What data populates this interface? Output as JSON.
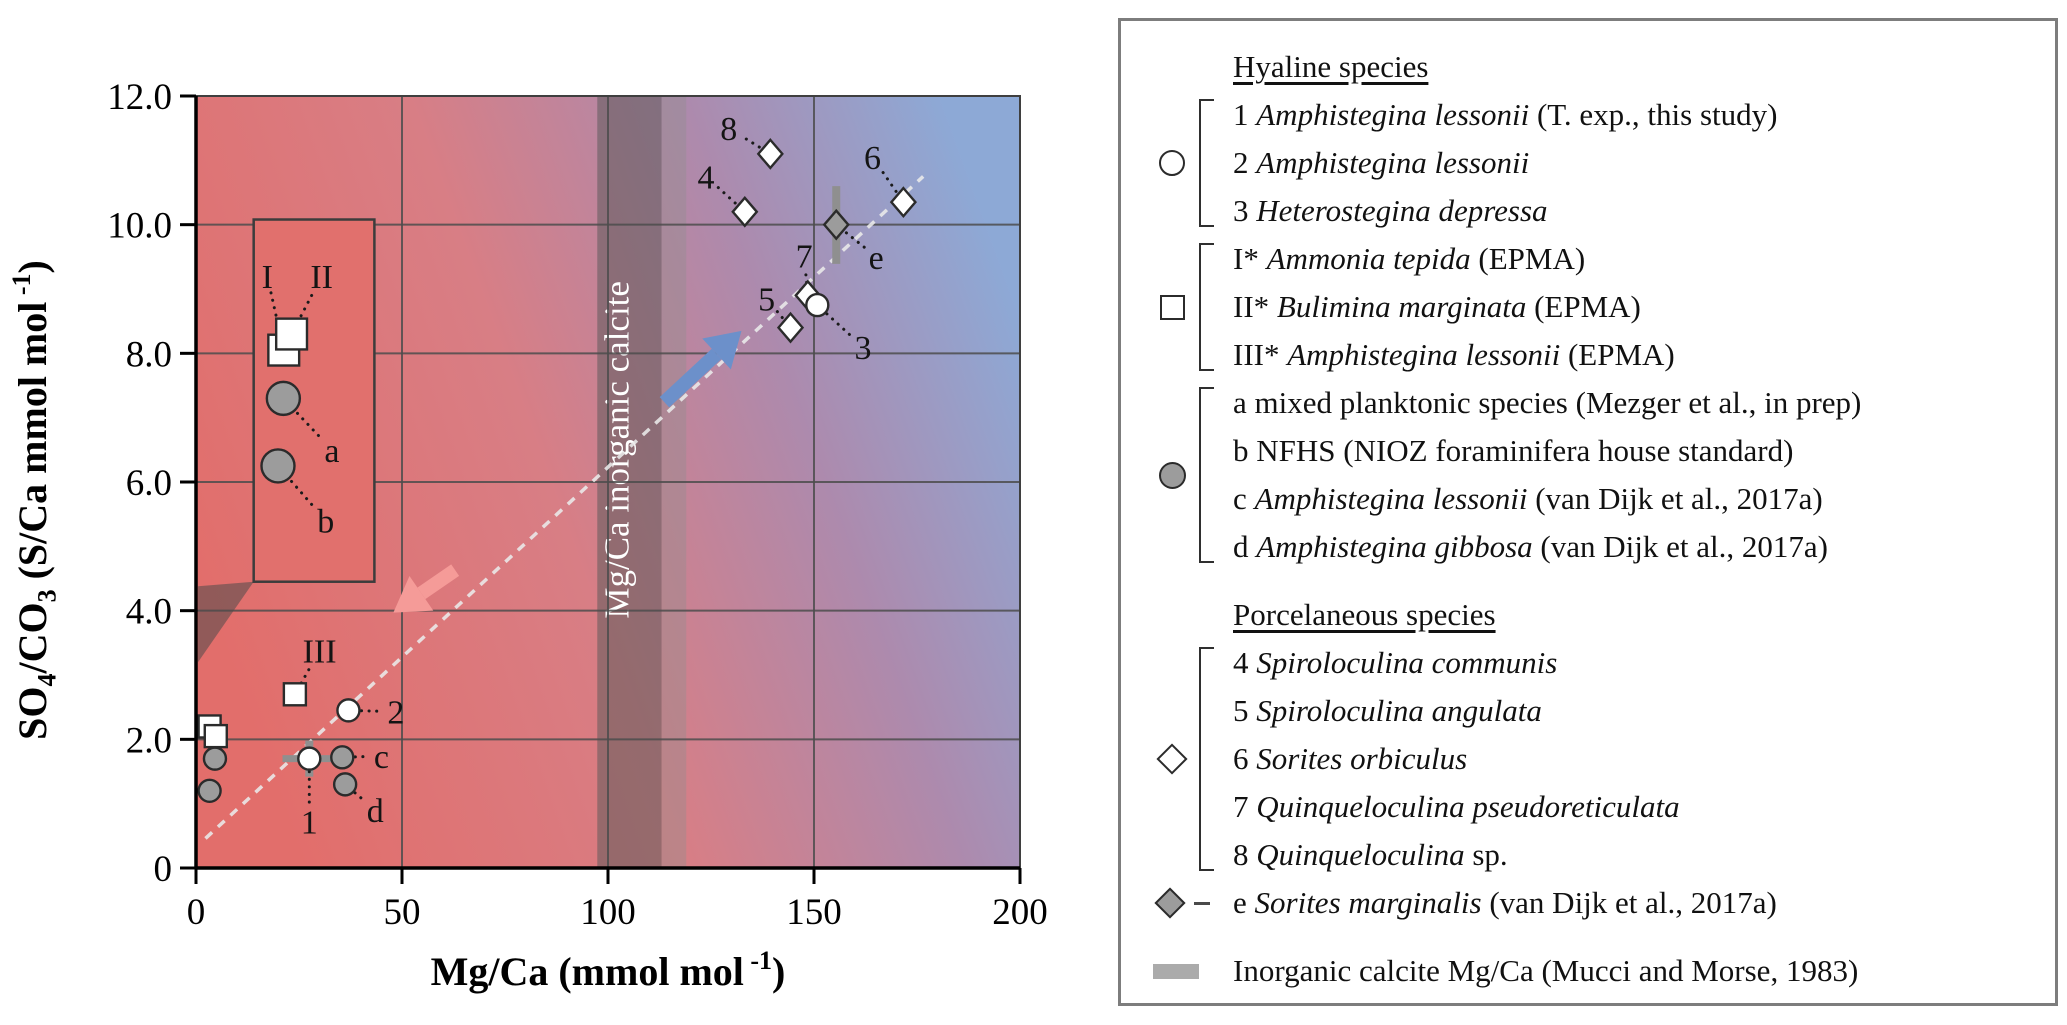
{
  "chart_data": {
    "type": "scatter",
    "title": "",
    "xlabel": "Mg/Ca (mmol mol-1)",
    "ylabel": "SO4/CO3 (S/Ca mmol mol-1)",
    "xlabel_parts": [
      {
        "t": "Mg/Ca (mmol mol",
        "k": "n"
      },
      {
        "t": " -1",
        "k": "sup"
      },
      {
        "t": ")",
        "k": "n"
      }
    ],
    "ylabel_parts": [
      {
        "t": "SO",
        "k": "n"
      },
      {
        "t": "4",
        "k": "sub"
      },
      {
        "t": "/CO",
        "k": "n"
      },
      {
        "t": "3",
        "k": "sub"
      },
      {
        "t": " (S/Ca mmol mol",
        "k": "n"
      },
      {
        "t": " -1",
        "k": "sup"
      },
      {
        "t": ")",
        "k": "n"
      }
    ],
    "xlim": [
      0,
      200
    ],
    "ylim": [
      0,
      12
    ],
    "xticks": [
      {
        "v": 0,
        "t": "0"
      },
      {
        "v": 50,
        "t": "50"
      },
      {
        "v": 100,
        "t": "100"
      },
      {
        "v": 150,
        "t": "150"
      },
      {
        "v": 200,
        "t": "200"
      }
    ],
    "yticks": [
      {
        "v": 0,
        "t": "0"
      },
      {
        "v": 2,
        "t": "2.0"
      },
      {
        "v": 4,
        "t": "4.0"
      },
      {
        "v": 6,
        "t": "6.0"
      },
      {
        "v": 8,
        "t": "8.0"
      },
      {
        "v": 10,
        "t": "10.0"
      },
      {
        "v": 12,
        "t": "12.0"
      }
    ],
    "grid_x": [
      50,
      100,
      150
    ],
    "grid_y": [
      2,
      4,
      6,
      8,
      10
    ],
    "band": {
      "x0": 97.4,
      "x1": 113,
      "x2": 119,
      "label": "Mg/Ca inorganic calcite",
      "label_x": 105,
      "label_y": 6.5
    },
    "trend": {
      "x1": 2.3,
      "y1": 0.46,
      "x2": 176.5,
      "y2": 10.75
    },
    "arrows": [
      {
        "from": [
          62.9,
          4.63
        ],
        "to": [
          47.9,
          3.97
        ],
        "color": "#f59b98"
      },
      {
        "from": [
          113.7,
          7.24
        ],
        "to": [
          132.4,
          8.35
        ],
        "color": "#6c90ca"
      }
    ],
    "points": [
      {
        "id": "square-I-main",
        "marker": "square",
        "fill": "white",
        "x": 3.3,
        "y": 2.2
      },
      {
        "id": "square-II-main",
        "marker": "square",
        "fill": "white",
        "x": 4.8,
        "y": 2.05
      },
      {
        "id": "circle-a-main",
        "marker": "circle",
        "fill": "gray",
        "x": 4.6,
        "y": 1.7
      },
      {
        "id": "circle-b-main",
        "marker": "circle",
        "fill": "gray",
        "x": 3.3,
        "y": 1.2
      },
      {
        "id": "point-1",
        "marker": "circle",
        "fill": "white",
        "x": 27.5,
        "y": 1.7,
        "label": "1",
        "lx": 27.5,
        "ly": 0.72,
        "ex": [
          21,
          35
        ],
        "ey": [
          1.42,
          1.98
        ]
      },
      {
        "id": "point-2",
        "marker": "circle",
        "fill": "white",
        "x": 37,
        "y": 2.45,
        "label": "2",
        "lx": 48.5,
        "ly": 2.43
      },
      {
        "id": "square-III",
        "marker": "square",
        "fill": "white",
        "x": 24,
        "y": 2.7,
        "label": "III",
        "lx": 30,
        "ly": 3.38
      },
      {
        "id": "point-c",
        "marker": "circle",
        "fill": "gray",
        "x": 35.5,
        "y": 1.72,
        "label": "c",
        "lx": 45,
        "ly": 1.74
      },
      {
        "id": "point-d",
        "marker": "circle",
        "fill": "gray",
        "x": 36.2,
        "y": 1.3,
        "label": "d",
        "lx": 43.5,
        "ly": 0.9
      },
      {
        "id": "point-8",
        "marker": "diamond",
        "fill": "white",
        "x": 139.4,
        "y": 11.1,
        "label": "8",
        "lx": 129.3,
        "ly": 11.5
      },
      {
        "id": "point-4",
        "marker": "diamond",
        "fill": "white",
        "x": 133.2,
        "y": 10.2,
        "label": "4",
        "lx": 123.8,
        "ly": 10.75
      },
      {
        "id": "point-6",
        "marker": "diamond",
        "fill": "white",
        "x": 171.7,
        "y": 10.35,
        "label": "6",
        "lx": 164.2,
        "ly": 11.05
      },
      {
        "id": "point-e",
        "marker": "diamond",
        "fill": "gray",
        "x": 155.4,
        "y": 10.0,
        "label": "e",
        "lx": 165.1,
        "ly": 9.5,
        "ey": [
          9.39,
          10.6
        ]
      },
      {
        "id": "point-7",
        "marker": "diamond",
        "fill": "white",
        "x": 148.5,
        "y": 8.9,
        "label": "7",
        "lx": 147.6,
        "ly": 9.52
      },
      {
        "id": "point-3",
        "marker": "circle",
        "fill": "white",
        "x": 150.8,
        "y": 8.75,
        "label": "3",
        "lx": 161.9,
        "ly": 8.1
      },
      {
        "id": "point-5",
        "marker": "diamond",
        "fill": "white",
        "x": 144.3,
        "y": 8.4,
        "label": "5",
        "lx": 138.5,
        "ly": 8.85
      }
    ],
    "inset": {
      "x0": 14,
      "x1": 43.3,
      "y0": 4.45,
      "y1": 10.08,
      "points": [
        {
          "id": "inset-square-I",
          "marker": "square",
          "fill": "white",
          "x": 21.3,
          "y": 8.05,
          "s": 1.4,
          "label": "I",
          "lx": 17.3,
          "ly": 9.2
        },
        {
          "id": "inset-square-II",
          "marker": "square",
          "fill": "white",
          "x": 23.2,
          "y": 8.3,
          "s": 1.4,
          "label": "II",
          "lx": 30.5,
          "ly": 9.2
        },
        {
          "id": "inset-circle-a",
          "marker": "circle",
          "fill": "gray",
          "x": 21.2,
          "y": 7.3,
          "s": 1.5,
          "label": "a",
          "lx": 33,
          "ly": 6.5
        },
        {
          "id": "inset-circle-b",
          "marker": "circle",
          "fill": "gray",
          "x": 19.9,
          "y": 6.25,
          "s": 1.5,
          "label": "b",
          "lx": 31.5,
          "ly": 5.4
        }
      ],
      "zoom_polygon": [
        [
          14,
          4.45
        ],
        [
          0.5,
          4.38
        ],
        [
          0.5,
          3.2
        ]
      ]
    }
  },
  "colors": {
    "bg_stops": [
      [
        0,
        "#e26e6b"
      ],
      [
        0.42,
        "#d87e85"
      ],
      [
        0.72,
        "#ad8aad"
      ],
      [
        1,
        "#8da9d6"
      ]
    ],
    "grid": "#4d4d4d",
    "band_dark": "#585858",
    "band_light": "#8e8e8e",
    "band_label": "#ffffff",
    "trend": "#ebebeb",
    "zoom_shade": "#4f4a4a",
    "inset_fill": "#e1706d",
    "marker_gray": "#9c9c9c",
    "marker_stroke": "#2b2b2b",
    "error_gray": "#8f8f8f",
    "leader": "#1a1a1a",
    "axis": "#000000"
  },
  "legend": {
    "headers": {
      "hyaline": "Hyaline species",
      "porcelaneous": "Porcelaneous species"
    },
    "hyaline_groups": [
      {
        "marker": "circle-white",
        "items": [
          {
            "prefix": "1 ",
            "italic": "Amphistegina lessonii",
            "suffix": " (T. exp., this study)"
          },
          {
            "prefix": "2 ",
            "italic": "Amphistegina lessonii",
            "suffix": ""
          },
          {
            "prefix": "3 ",
            "italic": "Heterostegina depressa",
            "suffix": ""
          }
        ]
      },
      {
        "marker": "square-white",
        "items": [
          {
            "prefix": "I* ",
            "italic": "Ammonia tepida",
            "suffix": " (EPMA)"
          },
          {
            "prefix": "II* ",
            "italic": "Bulimina marginata",
            "suffix": " (EPMA)"
          },
          {
            "prefix": "III* ",
            "italic": "Amphistegina lessonii",
            "suffix": " (EPMA)"
          }
        ]
      },
      {
        "marker": "circle-gray",
        "items": [
          {
            "prefix": "a mixed planktonic species (Mezger et al., in prep)",
            "italic": "",
            "suffix": ""
          },
          {
            "prefix": "b NFHS (NIOZ foraminifera house standard)",
            "italic": "",
            "suffix": ""
          },
          {
            "prefix": "c ",
            "italic": "Amphistegina lessonii",
            "suffix": " (van Dijk et al., 2017a)"
          },
          {
            "prefix": "d ",
            "italic": "Amphistegina gibbosa",
            "suffix": " (van Dijk et al., 2017a)"
          }
        ]
      }
    ],
    "porcelaneous_groups": [
      {
        "marker": "diamond-white",
        "items": [
          {
            "prefix": "4 ",
            "italic": "Spiroloculina communis",
            "suffix": ""
          },
          {
            "prefix": "5 ",
            "italic": "Spiroloculina angulata",
            "suffix": ""
          },
          {
            "prefix": "6 ",
            "italic": "Sorites orbiculus",
            "suffix": ""
          },
          {
            "prefix": "7 ",
            "italic": "Quinqueloculina pseudoreticulata",
            "suffix": ""
          },
          {
            "prefix": "8 ",
            "italic": "Quinqueloculina",
            "suffix": " sp."
          }
        ]
      }
    ],
    "e_row": {
      "marker": "diamond-gray",
      "prefix": "e ",
      "italic": "Sorites marginalis",
      "suffix": " (van Dijk et al., 2017a)"
    },
    "inorganic_row": {
      "marker": "gray-bar",
      "text": "Inorganic calcite Mg/Ca (Mucci and Morse, 1983)"
    }
  }
}
